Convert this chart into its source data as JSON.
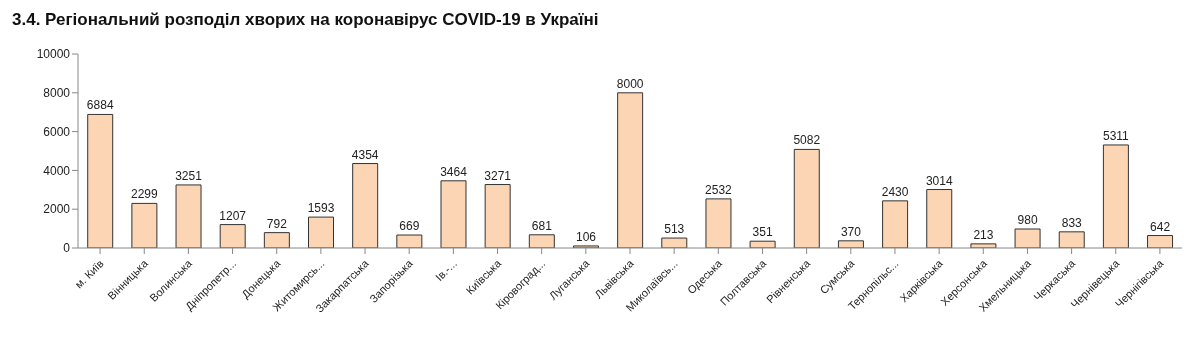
{
  "chart_data": {
    "type": "bar",
    "title": "3.4.  Регіональний розподіл хворих на коронавірус COVID-19 в Україні",
    "categories": [
      "м. Київ",
      "Вінницька",
      "Волинська",
      "Дніпропетр...",
      "Донецька",
      "Житомирсь...",
      "Закарпатська",
      "Запорізька",
      "Ів.-...",
      "Київська",
      "Кіровоград...",
      "Луганська",
      "Львівська",
      "Миколаївсь...",
      "Одеська",
      "Полтавська",
      "Рівненська",
      "Сумська",
      "Тернопільс...",
      "Харківська",
      "Херсонська",
      "Хмельницька",
      "Черкаська",
      "Чернівецька",
      "Чернігівська"
    ],
    "values": [
      6884,
      2299,
      3251,
      1207,
      792,
      1593,
      4354,
      669,
      3464,
      3271,
      681,
      106,
      8000,
      513,
      2532,
      351,
      5082,
      370,
      2430,
      3014,
      213,
      980,
      833,
      5311,
      642
    ],
    "color": "#fcd5b5",
    "ylim": [
      0,
      10000
    ],
    "yticks": [
      0,
      2000,
      4000,
      6000,
      8000,
      10000
    ],
    "grid": false,
    "data_labels": true
  }
}
